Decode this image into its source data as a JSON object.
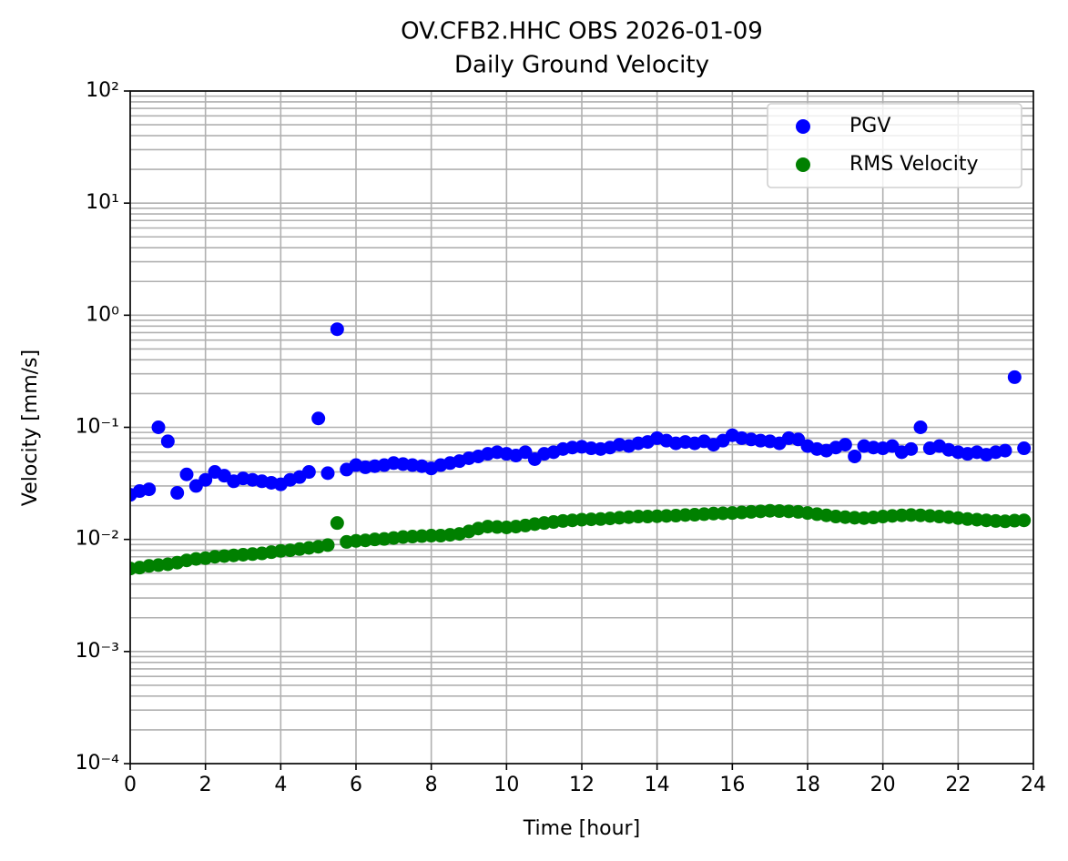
{
  "chart_data": {
    "type": "scatter",
    "title": "OV.CFB2.HHC OBS 2026-01-09",
    "subtitle": "Daily Ground Velocity",
    "xlabel": "Time [hour]",
    "ylabel": "Velocity [mm/s]",
    "x": [
      0,
      0.25,
      0.5,
      0.75,
      1,
      1.25,
      1.5,
      1.75,
      2,
      2.25,
      2.5,
      2.75,
      3,
      3.25,
      3.5,
      3.75,
      4,
      4.25,
      4.5,
      4.75,
      5,
      5.25,
      5.5,
      5.75,
      6,
      6.25,
      6.5,
      6.75,
      7,
      7.25,
      7.5,
      7.75,
      8,
      8.25,
      8.5,
      8.75,
      9,
      9.25,
      9.5,
      9.75,
      10,
      10.25,
      10.5,
      10.75,
      11,
      11.25,
      11.5,
      11.75,
      12,
      12.25,
      12.5,
      12.75,
      13,
      13.25,
      13.5,
      13.75,
      14,
      14.25,
      14.5,
      14.75,
      15,
      15.25,
      15.5,
      15.75,
      16,
      16.25,
      16.5,
      16.75,
      17,
      17.25,
      17.5,
      17.75,
      18,
      18.25,
      18.5,
      18.75,
      19,
      19.25,
      19.5,
      19.75,
      20,
      20.25,
      20.5,
      20.75,
      21,
      21.25,
      21.5,
      21.75,
      22,
      22.25,
      22.5,
      22.75,
      23,
      23.25,
      23.5,
      23.75
    ],
    "series": [
      {
        "name": "PGV",
        "color": "#0000ff",
        "values": [
          0.025,
          0.027,
          0.028,
          0.1,
          0.075,
          0.026,
          0.038,
          0.03,
          0.034,
          0.04,
          0.037,
          0.033,
          0.035,
          0.034,
          0.033,
          0.032,
          0.031,
          0.034,
          0.036,
          0.04,
          0.12,
          0.039,
          0.75,
          0.042,
          0.046,
          0.044,
          0.045,
          0.046,
          0.048,
          0.047,
          0.046,
          0.045,
          0.043,
          0.046,
          0.048,
          0.05,
          0.053,
          0.055,
          0.058,
          0.06,
          0.058,
          0.056,
          0.06,
          0.052,
          0.058,
          0.06,
          0.064,
          0.066,
          0.067,
          0.065,
          0.064,
          0.066,
          0.07,
          0.068,
          0.072,
          0.074,
          0.08,
          0.076,
          0.072,
          0.074,
          0.072,
          0.075,
          0.07,
          0.076,
          0.085,
          0.08,
          0.078,
          0.076,
          0.075,
          0.072,
          0.08,
          0.078,
          0.068,
          0.064,
          0.062,
          0.066,
          0.07,
          0.055,
          0.068,
          0.066,
          0.065,
          0.068,
          0.06,
          0.064,
          0.1,
          0.065,
          0.068,
          0.063,
          0.06,
          0.058,
          0.06,
          0.057,
          0.06,
          0.062,
          0.28,
          0.065
        ]
      },
      {
        "name": "RMS Velocity",
        "color": "#008000",
        "values": [
          0.0055,
          0.0056,
          0.0058,
          0.0059,
          0.006,
          0.0062,
          0.0065,
          0.0067,
          0.0068,
          0.007,
          0.0071,
          0.0072,
          0.0073,
          0.0074,
          0.0075,
          0.0077,
          0.0079,
          0.008,
          0.0082,
          0.0084,
          0.0086,
          0.0089,
          0.014,
          0.0095,
          0.0097,
          0.0098,
          0.01,
          0.0101,
          0.0103,
          0.0105,
          0.0106,
          0.0107,
          0.0108,
          0.0108,
          0.011,
          0.0112,
          0.0118,
          0.0125,
          0.013,
          0.0129,
          0.0128,
          0.013,
          0.0133,
          0.0137,
          0.014,
          0.0143,
          0.0146,
          0.0148,
          0.015,
          0.0151,
          0.0152,
          0.0154,
          0.0156,
          0.0158,
          0.016,
          0.016,
          0.0161,
          0.0162,
          0.0163,
          0.0165,
          0.0166,
          0.0168,
          0.017,
          0.0171,
          0.0172,
          0.0174,
          0.0176,
          0.0178,
          0.018,
          0.0179,
          0.0178,
          0.0176,
          0.0172,
          0.0168,
          0.0164,
          0.016,
          0.0158,
          0.0156,
          0.0155,
          0.0157,
          0.016,
          0.0162,
          0.0164,
          0.0165,
          0.0164,
          0.0162,
          0.016,
          0.0158,
          0.0155,
          0.0152,
          0.015,
          0.0148,
          0.0146,
          0.0145,
          0.0147,
          0.0148
        ]
      }
    ],
    "xlim": [
      0,
      24
    ],
    "xticks": [
      0,
      2,
      4,
      6,
      8,
      10,
      12,
      14,
      16,
      18,
      20,
      22,
      24
    ],
    "ylim": [
      0.0001,
      100
    ],
    "yscale": "log",
    "yticks": [
      {
        "value": 0.0001,
        "label": "10⁻⁴"
      },
      {
        "value": 0.001,
        "label": "10⁻³"
      },
      {
        "value": 0.01,
        "label": "10⁻²"
      },
      {
        "value": 0.1,
        "label": "10⁻¹"
      },
      {
        "value": 1,
        "label": "10⁰"
      },
      {
        "value": 10,
        "label": "10¹"
      },
      {
        "value": 100,
        "label": "10²"
      }
    ],
    "grid": true,
    "minor_grid": true,
    "legend": "upper right"
  }
}
